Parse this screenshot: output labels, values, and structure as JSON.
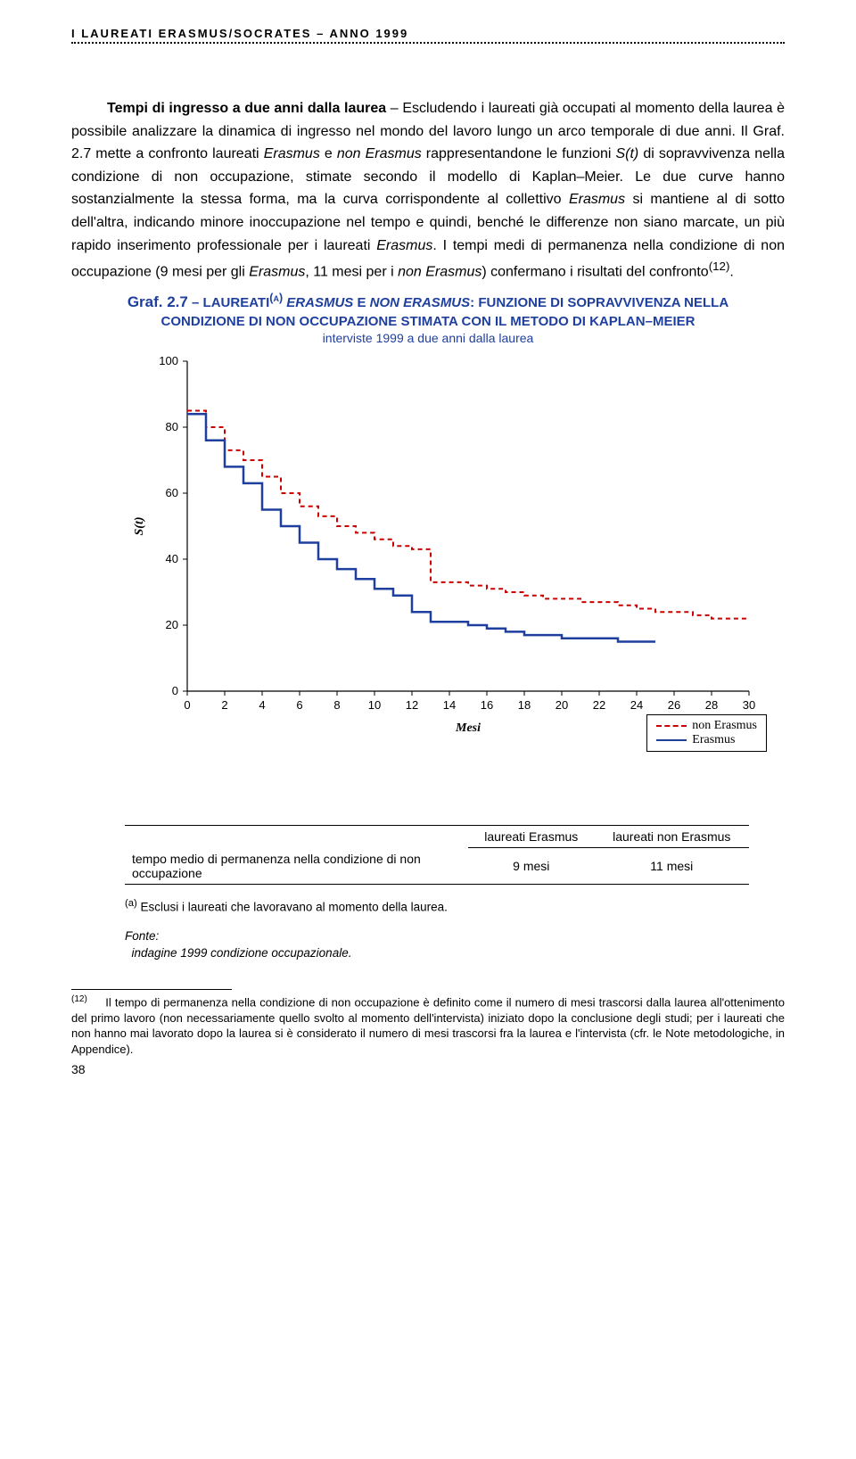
{
  "header": "I LAUREATI ERASMUS/SOCRATES – ANNO 1999",
  "paragraph_html": "<span class='bold'>Tempi di ingresso a due anni dalla laurea</span> – Escludendo i laureati già occupati al momento della laurea è possibile analizzare la dinamica di ingresso nel mondo del lavoro lungo un arco temporale di due anni. Il Graf. 2.7 mette a confronto laureati <span class='ital'>Erasmus</span> e <span class='ital'>non Erasmus</span> rappresentandone le funzioni <span class='ital'>S(t)</span> di sopravvivenza nella condizione di non occupazione, stimate secondo il modello di Kaplan–Meier. Le due curve hanno sostanzialmente la stessa forma, ma la curva corrispondente al collettivo <span class='ital'>Erasmus</span> si mantiene al di sotto dell'altra, indicando minore inoccupazione nel tempo e quindi, benché le differenze non siano marcate, un più rapido inserimento professionale per i laureati <span class='ital'>Erasmus</span>. I tempi medi di permanenza nella condizione di non occupazione (9 mesi per gli <span class='ital'>Erasmus</span>, 11 mesi per i <span class='ital'>non Erasmus</span>) confermano i risultati del confronto<sup>(12)</sup>.",
  "chart_title_lead": "Graf. 2.7",
  "chart_title_rest": " – LAUREATI<sup>(a)</sup> <span class='ital'>ERASMUS</span> E <span class='ital'>NON ERASMUS</span>: FUNZIONE DI SOPRAVVIVENZA NELLA CONDIZIONE DI NON OCCUPAZIONE STIMATA CON IL METODO DI KAPLAN–MEIER",
  "chart_subtitle": "interviste 1999 a due anni dalla laurea",
  "chart": {
    "type": "line",
    "xlim": [
      0,
      30
    ],
    "ylim": [
      0,
      100
    ],
    "xtick_step": 2,
    "ytick_step": 20,
    "ylabel": "S(t)",
    "xlabel": "Mesi",
    "background_color": "#ffffff",
    "grid": false,
    "series": [
      {
        "name": "non Erasmus",
        "color": "#cc0000",
        "dash": "5,4",
        "width": 2,
        "x": [
          0,
          1,
          2,
          3,
          4,
          5,
          6,
          7,
          8,
          9,
          10,
          11,
          12,
          13,
          14,
          15,
          16,
          17,
          18,
          19,
          20,
          21,
          22,
          23,
          24,
          25,
          26,
          27,
          28,
          29,
          30
        ],
        "y": [
          85,
          80,
          73,
          70,
          65,
          60,
          56,
          53,
          50,
          48,
          46,
          44,
          43,
          33,
          33,
          32,
          31,
          30,
          29,
          28,
          28,
          27,
          27,
          26,
          25,
          24,
          24,
          23,
          22,
          22,
          22
        ]
      },
      {
        "name": "Erasmus",
        "color": "#1f3f9e",
        "dash": "",
        "width": 2.5,
        "x": [
          0,
          1,
          2,
          3,
          4,
          5,
          6,
          7,
          8,
          9,
          10,
          11,
          12,
          13,
          14,
          15,
          16,
          17,
          18,
          19,
          20,
          21,
          22,
          23,
          24,
          25
        ],
        "y": [
          84,
          76,
          68,
          63,
          55,
          50,
          45,
          40,
          37,
          34,
          31,
          29,
          24,
          21,
          21,
          20,
          19,
          18,
          17,
          17,
          16,
          16,
          16,
          15,
          15,
          15
        ]
      }
    ],
    "legend": {
      "items": [
        "non Erasmus",
        "Erasmus"
      ],
      "colors": [
        "#cc0000",
        "#1f3f9e"
      ],
      "styles": [
        "dashed",
        "solid"
      ]
    }
  },
  "table": {
    "columns": [
      "",
      "laureati Erasmus",
      "laureati non Erasmus"
    ],
    "row_label": "tempo medio di permanenza nella condizione di non occupazione",
    "values": [
      "9 mesi",
      "11 mesi"
    ]
  },
  "note_a": "<sup>(a)</sup> Esclusi i laureati che lavoravano al momento della laurea.",
  "note_fonte_label": "Fonte:",
  "note_fonte_text": "indagine 1999 condizione occupazionale.",
  "footnote": "<span class='sup'>(12)</span>&nbsp;&nbsp;&nbsp;&nbsp;&nbsp;Il <span class='ital'>tempo di permanenza nella condizione di non occupazione</span> è definito come il numero di mesi trascorsi dalla laurea all'ottenimento del primo lavoro (non necessariamente quello svolto al momento dell'intervista) iniziato dopo la conclusione degli studi; per i laureati che non hanno mai lavorato dopo la laurea si è considerato il numero di mesi trascorsi fra la laurea e l'intervista (cfr. le Note metodologiche, in Appendice).",
  "page_number": "38"
}
